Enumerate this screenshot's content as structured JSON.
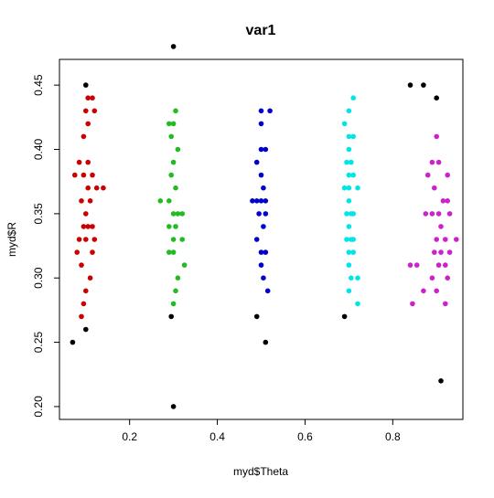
{
  "chart_data": {
    "type": "scatter",
    "title": "var1",
    "xlabel": "myd$Theta",
    "ylabel": "myd$R",
    "xlim": [
      0.04,
      0.96
    ],
    "ylim": [
      0.19,
      0.47
    ],
    "xticks": [
      "0.2",
      "0.4",
      "0.6",
      "0.8"
    ],
    "yticks": [
      "0.20",
      "0.25",
      "0.30",
      "0.35",
      "0.40",
      "0.45"
    ],
    "grid": false,
    "legend": "none",
    "series": [
      {
        "color": "#cc0000",
        "points": [
          [
            0.105,
            0.44
          ],
          [
            0.115,
            0.44
          ],
          [
            0.1,
            0.43
          ],
          [
            0.12,
            0.43
          ],
          [
            0.105,
            0.42
          ],
          [
            0.095,
            0.41
          ],
          [
            0.085,
            0.39
          ],
          [
            0.105,
            0.39
          ],
          [
            0.075,
            0.38
          ],
          [
            0.095,
            0.38
          ],
          [
            0.115,
            0.38
          ],
          [
            0.105,
            0.37
          ],
          [
            0.125,
            0.37
          ],
          [
            0.14,
            0.37
          ],
          [
            0.09,
            0.36
          ],
          [
            0.11,
            0.36
          ],
          [
            0.1,
            0.35
          ],
          [
            0.095,
            0.34
          ],
          [
            0.115,
            0.34
          ],
          [
            0.105,
            0.34
          ],
          [
            0.085,
            0.33
          ],
          [
            0.1,
            0.33
          ],
          [
            0.12,
            0.33
          ],
          [
            0.08,
            0.32
          ],
          [
            0.115,
            0.32
          ],
          [
            0.09,
            0.31
          ],
          [
            0.11,
            0.3
          ],
          [
            0.1,
            0.29
          ],
          [
            0.095,
            0.28
          ],
          [
            0.09,
            0.27
          ]
        ]
      },
      {
        "color": "#22bb22",
        "points": [
          [
            0.29,
            0.42
          ],
          [
            0.305,
            0.43
          ],
          [
            0.3,
            0.42
          ],
          [
            0.295,
            0.41
          ],
          [
            0.31,
            0.4
          ],
          [
            0.3,
            0.39
          ],
          [
            0.295,
            0.38
          ],
          [
            0.305,
            0.37
          ],
          [
            0.27,
            0.36
          ],
          [
            0.29,
            0.36
          ],
          [
            0.3,
            0.35
          ],
          [
            0.31,
            0.35
          ],
          [
            0.32,
            0.35
          ],
          [
            0.29,
            0.34
          ],
          [
            0.305,
            0.34
          ],
          [
            0.3,
            0.33
          ],
          [
            0.32,
            0.33
          ],
          [
            0.29,
            0.32
          ],
          [
            0.3,
            0.32
          ],
          [
            0.325,
            0.31
          ],
          [
            0.31,
            0.3
          ],
          [
            0.305,
            0.29
          ],
          [
            0.3,
            0.28
          ]
        ]
      },
      {
        "color": "#0000cc",
        "points": [
          [
            0.5,
            0.43
          ],
          [
            0.52,
            0.43
          ],
          [
            0.5,
            0.42
          ],
          [
            0.5,
            0.4
          ],
          [
            0.51,
            0.4
          ],
          [
            0.49,
            0.39
          ],
          [
            0.5,
            0.38
          ],
          [
            0.505,
            0.37
          ],
          [
            0.48,
            0.36
          ],
          [
            0.49,
            0.36
          ],
          [
            0.5,
            0.36
          ],
          [
            0.51,
            0.36
          ],
          [
            0.495,
            0.35
          ],
          [
            0.51,
            0.35
          ],
          [
            0.505,
            0.34
          ],
          [
            0.49,
            0.33
          ],
          [
            0.5,
            0.32
          ],
          [
            0.51,
            0.32
          ],
          [
            0.5,
            0.31
          ],
          [
            0.505,
            0.3
          ],
          [
            0.515,
            0.29
          ]
        ]
      },
      {
        "color": "#00e6e6",
        "points": [
          [
            0.71,
            0.44
          ],
          [
            0.7,
            0.43
          ],
          [
            0.69,
            0.42
          ],
          [
            0.7,
            0.41
          ],
          [
            0.71,
            0.41
          ],
          [
            0.7,
            0.4
          ],
          [
            0.695,
            0.39
          ],
          [
            0.705,
            0.39
          ],
          [
            0.7,
            0.38
          ],
          [
            0.71,
            0.38
          ],
          [
            0.69,
            0.37
          ],
          [
            0.7,
            0.37
          ],
          [
            0.72,
            0.37
          ],
          [
            0.7,
            0.36
          ],
          [
            0.695,
            0.35
          ],
          [
            0.705,
            0.35
          ],
          [
            0.71,
            0.35
          ],
          [
            0.7,
            0.34
          ],
          [
            0.695,
            0.33
          ],
          [
            0.705,
            0.33
          ],
          [
            0.71,
            0.33
          ],
          [
            0.7,
            0.32
          ],
          [
            0.71,
            0.32
          ],
          [
            0.7,
            0.31
          ],
          [
            0.705,
            0.3
          ],
          [
            0.72,
            0.3
          ],
          [
            0.7,
            0.29
          ],
          [
            0.72,
            0.28
          ]
        ]
      },
      {
        "color": "#cc22cc",
        "points": [
          [
            0.9,
            0.41
          ],
          [
            0.89,
            0.39
          ],
          [
            0.905,
            0.39
          ],
          [
            0.88,
            0.38
          ],
          [
            0.925,
            0.38
          ],
          [
            0.895,
            0.37
          ],
          [
            0.915,
            0.36
          ],
          [
            0.925,
            0.36
          ],
          [
            0.875,
            0.35
          ],
          [
            0.89,
            0.35
          ],
          [
            0.905,
            0.35
          ],
          [
            0.93,
            0.35
          ],
          [
            0.91,
            0.34
          ],
          [
            0.9,
            0.33
          ],
          [
            0.92,
            0.33
          ],
          [
            0.945,
            0.33
          ],
          [
            0.895,
            0.32
          ],
          [
            0.91,
            0.32
          ],
          [
            0.93,
            0.32
          ],
          [
            0.84,
            0.31
          ],
          [
            0.855,
            0.31
          ],
          [
            0.905,
            0.31
          ],
          [
            0.92,
            0.31
          ],
          [
            0.89,
            0.3
          ],
          [
            0.925,
            0.3
          ],
          [
            0.87,
            0.29
          ],
          [
            0.9,
            0.29
          ],
          [
            0.845,
            0.28
          ],
          [
            0.92,
            0.28
          ]
        ]
      },
      {
        "color": "#000000",
        "points": [
          [
            0.1,
            0.45
          ],
          [
            0.07,
            0.25
          ],
          [
            0.1,
            0.26
          ],
          [
            0.3,
            0.48
          ],
          [
            0.295,
            0.27
          ],
          [
            0.3,
            0.2
          ],
          [
            0.49,
            0.27
          ],
          [
            0.51,
            0.25
          ],
          [
            0.69,
            0.27
          ],
          [
            0.84,
            0.45
          ],
          [
            0.87,
            0.45
          ],
          [
            0.9,
            0.44
          ],
          [
            0.91,
            0.22
          ]
        ]
      }
    ]
  }
}
